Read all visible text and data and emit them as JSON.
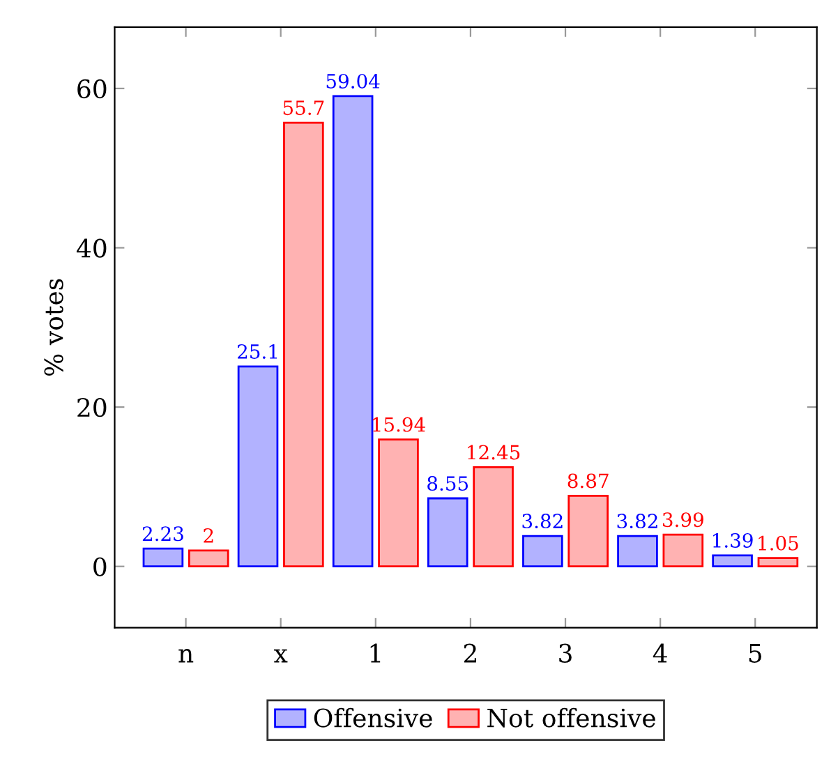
{
  "chart_data": {
    "type": "bar",
    "ylabel": "% votes",
    "categories": [
      "n",
      "x",
      "1",
      "2",
      "3",
      "4",
      "5"
    ],
    "series": [
      {
        "name": "Offensive",
        "color": "#0000ff",
        "values": [
          2.23,
          25.1,
          59.04,
          8.55,
          3.82,
          3.82,
          1.39
        ]
      },
      {
        "name": "Not offensive",
        "color": "#ff0000",
        "values": [
          2,
          55.7,
          15.94,
          12.45,
          8.87,
          3.99,
          1.05
        ]
      }
    ],
    "ylim": [
      -7.7,
      67.7
    ],
    "yticks": [
      0,
      20,
      40,
      60
    ],
    "grid": false,
    "legend": "bottom",
    "data_labels": true
  }
}
